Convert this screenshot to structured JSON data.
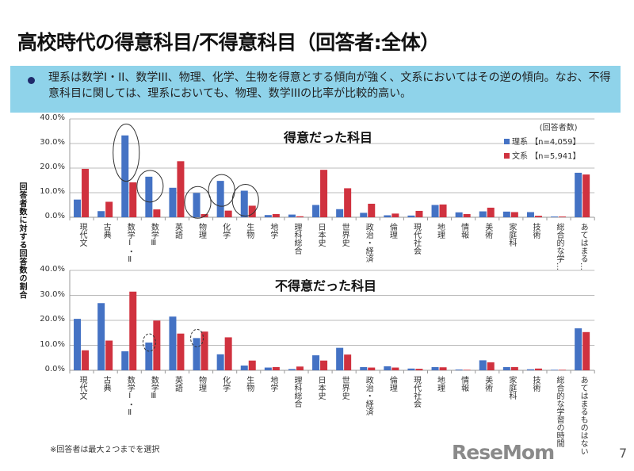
{
  "title": "高校時代の得意科目/不得意科目（回答者:全体）",
  "note": "理系は数学I・II、数学III、物理、化学、生物を得意とする傾向が強く、文系においてはその逆の傾向。なお、不得意科目に関しては、理系においても、物理、数学IIIの比率が比較的高い。",
  "y_axis_title": "回答者数に対する回答数の割合",
  "legend": {
    "header": "(回答者数)",
    "items": [
      {
        "label": "理系",
        "n": "【n=4,059】",
        "color": "#4472c4"
      },
      {
        "label": "文系",
        "n": "【n=5,941】",
        "color": "#d0323f"
      }
    ]
  },
  "footnote": "※回答者は最大２つまでを選択",
  "logo": "ReseMom",
  "page_number": "7",
  "chart_data": [
    {
      "type": "bar",
      "title": "得意だった科目",
      "ylim": [
        0,
        40
      ],
      "yticks": [
        "0.0%",
        "10.0%",
        "20.0%",
        "30.0%",
        "40.0%"
      ],
      "grid": true,
      "legend_placement": "top-right",
      "categories": [
        "現代文",
        "古典",
        "数学Ⅰ・Ⅱ",
        "数学Ⅲ",
        "英語",
        "物理",
        "化学",
        "生物",
        "地学",
        "理科総合",
        "日本史",
        "世界史",
        "政治・経済",
        "倫理",
        "現代社会",
        "地理",
        "情報",
        "美術",
        "家庭科",
        "技術",
        "総合的な学…",
        "あてはまる…"
      ],
      "series": [
        {
          "name": "理系",
          "values": [
            7.2,
            2.5,
            33.3,
            16.5,
            12.0,
            9.9,
            14.8,
            10.8,
            0.9,
            1.1,
            5.0,
            3.3,
            1.8,
            0.8,
            0.7,
            5.0,
            2.0,
            2.4,
            2.3,
            2.1,
            0.3,
            18.1
          ]
        },
        {
          "name": "文系",
          "values": [
            19.7,
            6.3,
            14.2,
            3.2,
            22.8,
            1.3,
            2.7,
            4.7,
            1.3,
            0.4,
            19.3,
            11.8,
            5.5,
            1.5,
            2.6,
            5.2,
            1.3,
            3.9,
            2.1,
            0.6,
            0.3,
            17.4
          ]
        }
      ],
      "highlighted": [
        "数学Ⅰ・Ⅱ",
        "数学Ⅲ",
        "物理",
        "化学",
        "生物"
      ]
    },
    {
      "type": "bar",
      "title": "不得意だった科目",
      "ylim": [
        0,
        40
      ],
      "yticks": [
        "0.0%",
        "10.0%",
        "20.0%",
        "30.0%",
        "40.0%"
      ],
      "grid": true,
      "categories": [
        "現代文",
        "古典",
        "数学Ⅰ・Ⅱ",
        "数学Ⅲ",
        "英語",
        "物理",
        "化学",
        "生物",
        "地学",
        "理科総合",
        "日本史",
        "世界史",
        "政治・経済",
        "倫理",
        "現代社会",
        "地理",
        "情報",
        "美術",
        "家庭科",
        "技術",
        "総合的な学習の時間",
        "あてはまるものはない"
      ],
      "series": [
        {
          "name": "理系",
          "values": [
            20.6,
            26.9,
            7.6,
            11.1,
            21.5,
            12.9,
            6.4,
            1.9,
            1.1,
            0.5,
            6.0,
            9.0,
            1.3,
            1.6,
            0.7,
            1.3,
            0.3,
            4.0,
            1.3,
            0.4,
            0.2,
            16.8
          ]
        },
        {
          "name": "文系",
          "values": [
            8.0,
            11.9,
            31.5,
            19.9,
            14.7,
            15.5,
            13.2,
            3.9,
            1.3,
            1.5,
            3.9,
            6.3,
            1.1,
            1.1,
            0.6,
            1.2,
            0.2,
            3.2,
            1.3,
            0.7,
            0.2,
            15.3
          ]
        }
      ],
      "highlighted_dashed": [
        "数学Ⅲ",
        "物理"
      ]
    }
  ]
}
